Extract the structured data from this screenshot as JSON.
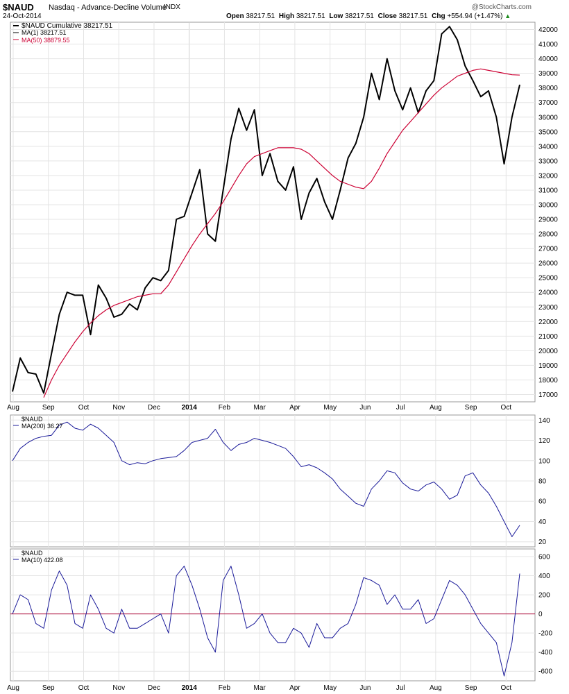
{
  "header": {
    "symbol": "$NAUD",
    "description": "Nasdaq - Advance-Decline Volume",
    "exchange": "INDX",
    "date": "24-Oct-2014",
    "watermark": "@StockCharts.com",
    "open_label": "Open",
    "open": "38217.51",
    "high_label": "High",
    "high": "38217.51",
    "low_label": "Low",
    "low": "38217.51",
    "close_label": "Close",
    "close": "38217.51",
    "chg_label": "Chg",
    "chg": "+554.94 (+1.47%)"
  },
  "legend": {
    "main_1": "$NAUD Cumulative 38217.51",
    "main_2": "MA(1) 38217.51",
    "main_3": "MA(50) 38879.55",
    "mid_1": "$NAUD",
    "mid_2": "MA(200) 36.27",
    "low_1": "$NAUD",
    "low_2": "MA(10) 422.08"
  },
  "colors": {
    "price": "#000000",
    "ma50": "#cc0033",
    "indicator": "#1a1a99",
    "zero_line": "#aa0033",
    "grid": "#e4e4e4",
    "axis": "#999999"
  },
  "chart_data": [
    {
      "type": "line",
      "panel": "main",
      "x_dates": [
        "2013-07-29",
        "2013-08-05",
        "2013-08-12",
        "2013-08-19",
        "2013-08-26",
        "2013-09-03",
        "2013-09-09",
        "2013-09-16",
        "2013-09-23",
        "2013-09-30",
        "2013-10-07",
        "2013-10-14",
        "2013-10-21",
        "2013-10-28",
        "2013-11-04",
        "2013-11-11",
        "2013-11-18",
        "2013-11-25",
        "2013-12-02",
        "2013-12-09",
        "2013-12-16",
        "2013-12-23",
        "2013-12-30",
        "2014-01-06",
        "2014-01-13",
        "2014-01-21",
        "2014-01-27",
        "2014-02-03",
        "2014-02-10",
        "2014-02-18",
        "2014-02-24",
        "2014-03-03",
        "2014-03-10",
        "2014-03-17",
        "2014-03-24",
        "2014-03-31",
        "2014-04-07",
        "2014-04-14",
        "2014-04-21",
        "2014-04-28",
        "2014-05-05",
        "2014-05-12",
        "2014-05-19",
        "2014-05-27",
        "2014-06-02",
        "2014-06-09",
        "2014-06-16",
        "2014-06-23",
        "2014-06-30",
        "2014-07-07",
        "2014-07-14",
        "2014-07-21",
        "2014-07-28",
        "2014-08-04",
        "2014-08-11",
        "2014-08-18",
        "2014-08-25",
        "2014-09-02",
        "2014-09-08",
        "2014-09-15",
        "2014-09-22",
        "2014-09-29",
        "2014-10-06",
        "2014-10-13",
        "2014-10-20",
        "2014-10-24"
      ],
      "series": [
        {
          "name": "$NAUD Cumulative",
          "values": [
            17200,
            19500,
            18500,
            18400,
            17100,
            19800,
            22500,
            24000,
            23800,
            23800,
            21100,
            24500,
            23600,
            22300,
            22500,
            23200,
            22800,
            24300,
            25000,
            24800,
            25500,
            29000,
            29200,
            30800,
            32400,
            28000,
            27500,
            31000,
            34500,
            36600,
            35100,
            36500,
            32000,
            33500,
            31600,
            31000,
            32600,
            29000,
            30800,
            31800,
            30200,
            29000,
            31000,
            33200,
            34200,
            36000,
            39000,
            37200,
            40000,
            37800,
            36500,
            38000,
            36300,
            37800,
            38500,
            41700,
            42200,
            41300,
            39500,
            38500,
            37400,
            37800,
            36000,
            32800,
            36000,
            38217.51
          ]
        },
        {
          "name": "MA(50)",
          "values": [
            null,
            null,
            null,
            null,
            16800,
            18000,
            19000,
            19800,
            20600,
            21300,
            21900,
            22400,
            22800,
            23100,
            23300,
            23500,
            23700,
            23800,
            23900,
            23900,
            24500,
            25400,
            26300,
            27200,
            28000,
            28700,
            29400,
            30200,
            31100,
            32000,
            32800,
            33300,
            33500,
            33700,
            33900,
            33900,
            33900,
            33800,
            33500,
            33000,
            32500,
            32000,
            31600,
            31400,
            31200,
            31100,
            31600,
            32500,
            33500,
            34300,
            35100,
            35700,
            36300,
            36900,
            37500,
            38000,
            38400,
            38800,
            39000,
            39200,
            39300,
            39200,
            39100,
            39000,
            38900,
            38879.55
          ]
        }
      ],
      "ylim": [
        16500,
        42500
      ],
      "yticks": [
        17000,
        18000,
        19000,
        20000,
        21000,
        22000,
        23000,
        24000,
        25000,
        26000,
        27000,
        28000,
        29000,
        30000,
        31000,
        32000,
        33000,
        34000,
        35000,
        36000,
        37000,
        38000,
        39000,
        40000,
        41000,
        42000
      ]
    },
    {
      "type": "line",
      "panel": "middle",
      "series": [
        {
          "name": "MA(200)",
          "values": [
            100,
            112,
            118,
            122,
            124,
            125,
            135,
            138,
            132,
            130,
            136,
            132,
            125,
            118,
            100,
            96,
            98,
            97,
            100,
            102,
            103,
            104,
            110,
            118,
            120,
            122,
            131,
            118,
            110,
            116,
            118,
            122,
            120,
            118,
            115,
            112,
            104,
            94,
            96,
            93,
            88,
            82,
            72,
            65,
            58,
            55,
            72,
            80,
            90,
            88,
            78,
            72,
            70,
            76,
            79,
            72,
            62,
            66,
            85,
            88,
            76,
            68,
            55,
            40,
            25,
            36.27
          ]
        }
      ],
      "ylim": [
        15,
        145
      ],
      "yticks": [
        20,
        40,
        60,
        80,
        100,
        120,
        140
      ]
    },
    {
      "type": "line",
      "panel": "bottom",
      "series": [
        {
          "name": "MA(10)",
          "values": [
            0,
            200,
            150,
            -100,
            -150,
            250,
            450,
            300,
            -100,
            -150,
            200,
            50,
            -150,
            -200,
            50,
            -150,
            -150,
            -100,
            -50,
            0,
            -200,
            400,
            500,
            300,
            50,
            -250,
            -400,
            350,
            500,
            200,
            -150,
            -100,
            0,
            -200,
            -300,
            -300,
            -150,
            -200,
            -350,
            -100,
            -250,
            -250,
            -150,
            -100,
            100,
            380,
            350,
            300,
            100,
            200,
            50,
            50,
            150,
            -100,
            -50,
            150,
            350,
            300,
            200,
            50,
            -100,
            -200,
            -300,
            -650,
            -300,
            422.08
          ]
        }
      ],
      "ylim": [
        -700,
        680
      ],
      "yticks": [
        -600,
        -400,
        -200,
        0,
        200,
        400,
        600
      ]
    }
  ],
  "x_axis_labels": [
    "Aug",
    "Sep",
    "Oct",
    "Nov",
    "Dec",
    "2014",
    "Feb",
    "Mar",
    "Apr",
    "May",
    "Jun",
    "Jul",
    "Aug",
    "Sep",
    "Oct"
  ]
}
